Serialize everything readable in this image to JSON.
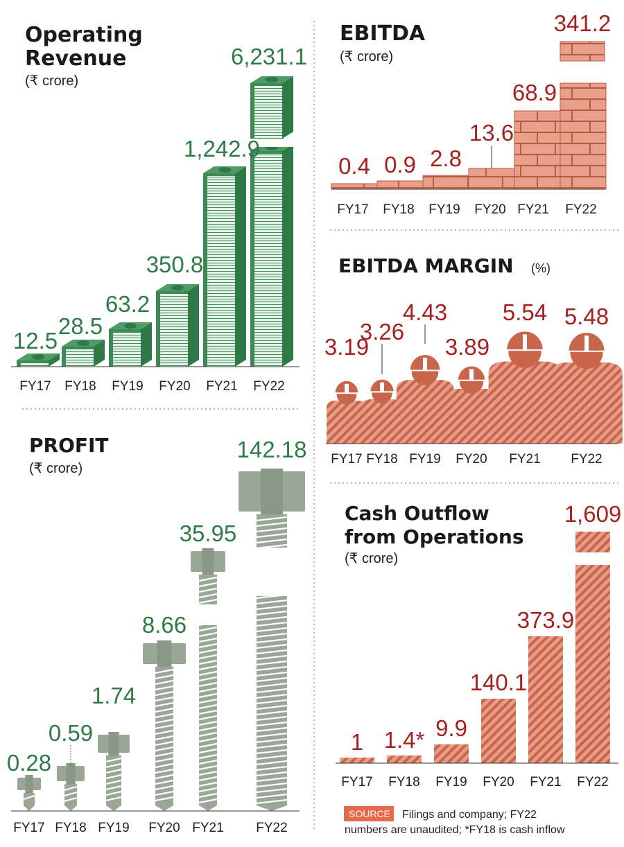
{
  "colors": {
    "green": "#3d8a56",
    "green_dark": "#2e7a46",
    "green_light": "#e4f1e6",
    "salmon": "#e4907a",
    "salmon_dark": "#c9654b",
    "brick": "#e8a08b",
    "grey": "#9aa696",
    "red": "#a5201e"
  },
  "source": {
    "label": "SOURCE",
    "line1": "Filings and company; FY22",
    "line2": "numbers are unaudited; *FY18 is cash inflow"
  },
  "chart_data": [
    {
      "id": "revenue",
      "type": "bar",
      "title": [
        "Operating",
        "Revenue"
      ],
      "unit": "(₹ crore)",
      "categories": [
        "FY17",
        "FY18",
        "FY19",
        "FY20",
        "FY21",
        "FY22"
      ],
      "values": [
        12.5,
        28.5,
        63.2,
        350.8,
        1242.9,
        6231.1
      ],
      "labels": [
        "12.5",
        "28.5",
        "63.2",
        "350.8",
        "1,242.9",
        "6,231.1"
      ],
      "axis_break": true
    },
    {
      "id": "ebitda",
      "type": "bar",
      "title": [
        "EBITDA"
      ],
      "unit": "(₹ crore)",
      "categories": [
        "FY17",
        "FY18",
        "FY19",
        "FY20",
        "FY21",
        "FY22"
      ],
      "values": [
        0.4,
        0.9,
        2.8,
        13.6,
        68.9,
        341.2
      ],
      "labels": [
        "0.4",
        "0.9",
        "2.8",
        "13.6",
        "68.9",
        "341.2"
      ],
      "axis_break": true
    },
    {
      "id": "margin",
      "type": "bar",
      "title": [
        "EBITDA MARGIN"
      ],
      "unit": "(%)",
      "categories": [
        "FY17",
        "FY18",
        "FY19",
        "FY20",
        "FY21",
        "FY22"
      ],
      "values": [
        3.19,
        3.26,
        4.43,
        3.89,
        5.54,
        5.48
      ],
      "labels": [
        "3.19",
        "3.26",
        "4.43",
        "3.89",
        "5.54",
        "5.48"
      ]
    },
    {
      "id": "profit",
      "type": "bar",
      "title": [
        "PROFIT"
      ],
      "unit": "(₹ crore)",
      "categories": [
        "FY17",
        "FY18",
        "FY19",
        "FY20",
        "FY21",
        "FY22"
      ],
      "values": [
        0.28,
        0.59,
        1.74,
        8.66,
        35.95,
        142.18
      ],
      "labels": [
        "0.28",
        "0.59",
        "1.74",
        "8.66",
        "35.95",
        "142.18"
      ],
      "axis_break": true
    },
    {
      "id": "cash",
      "type": "bar",
      "title": [
        "Cash Outflow",
        "from Operations"
      ],
      "unit": "(₹ crore)",
      "categories": [
        "FY17",
        "FY18",
        "FY19",
        "FY20",
        "FY21",
        "FY22"
      ],
      "values": [
        1,
        1.4,
        9.9,
        140.1,
        373.9,
        1609
      ],
      "labels": [
        "1",
        "1.4*",
        "9.9",
        "140.1",
        "373.9",
        "1,609"
      ],
      "axis_break": true
    }
  ]
}
